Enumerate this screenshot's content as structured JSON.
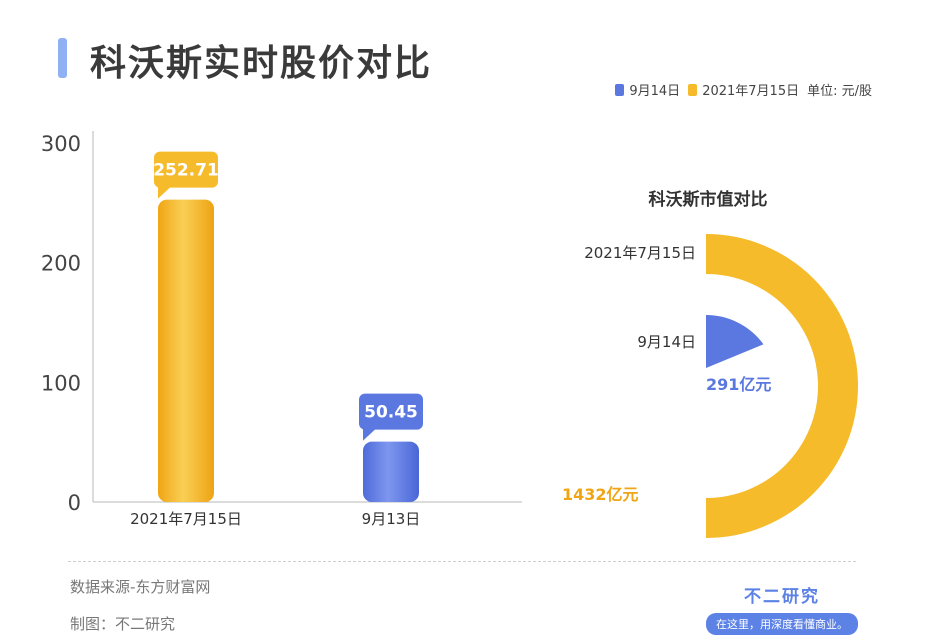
{
  "header": {
    "title": "科沃斯实时股价对比"
  },
  "legend": {
    "items": [
      {
        "label": "9月14日",
        "color": "#5b78e0"
      },
      {
        "label": "2021年7月15日",
        "color": "#f6bb2a"
      }
    ],
    "unit": "单位: 元/股"
  },
  "chart_data": [
    {
      "type": "bar",
      "categories": [
        "2021年7月15日",
        "9月13日"
      ],
      "values": [
        252.71,
        50.45
      ],
      "value_labels": [
        "252.71",
        "50.45"
      ],
      "colors": [
        "#f6bb2a",
        "#5b78e0"
      ],
      "ylim": [
        0,
        300
      ],
      "yticks": [
        "0",
        "100",
        "200",
        "300"
      ],
      "ytick_values": [
        0,
        100,
        200,
        300
      ],
      "grid": false
    },
    {
      "type": "pie",
      "title": "科沃斯市值对比",
      "labels": [
        "2021年7月15日",
        "9月14日"
      ],
      "values": [
        1432,
        291
      ],
      "value_labels": [
        "1432亿元",
        "291亿元"
      ],
      "colors": [
        "#f6bb2a",
        "#5b78e0"
      ],
      "unit": "亿元"
    }
  ],
  "footer": {
    "source": "数据来源-东方财富网",
    "maker": "制图：不二研究",
    "brand_name": "不二研究",
    "brand_slogan": "在这里，用深度看懂商业。"
  }
}
